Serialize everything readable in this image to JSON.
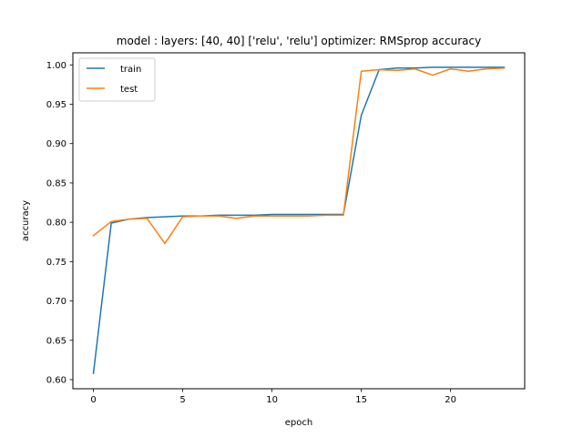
{
  "chart_data": {
    "type": "line",
    "title": "model : layers: [40, 40] ['relu', 'relu'] optimizer: RMSprop accuracy",
    "xlabel": "epoch",
    "ylabel": "accuracy",
    "xlim": [
      -1.15,
      24.15
    ],
    "ylim": [
      0.5884,
      1.0154
    ],
    "xticks": [
      0,
      5,
      10,
      15,
      20
    ],
    "xtick_labels": [
      "0",
      "5",
      "10",
      "15",
      "20"
    ],
    "yticks": [
      0.6,
      0.65,
      0.7,
      0.75,
      0.8,
      0.85,
      0.9,
      0.95,
      1.0
    ],
    "ytick_labels": [
      "0.60",
      "0.65",
      "0.70",
      "0.75",
      "0.80",
      "0.85",
      "0.90",
      "0.95",
      "1.00"
    ],
    "grid": false,
    "legend_position": "upper-left",
    "x": [
      0,
      1,
      2,
      3,
      4,
      5,
      6,
      7,
      8,
      9,
      10,
      11,
      12,
      13,
      14,
      15,
      16,
      17,
      18,
      19,
      20,
      21,
      22,
      23
    ],
    "series": [
      {
        "name": "train",
        "color": "#1f77b4",
        "values": [
          0.608,
          0.799,
          0.804,
          0.806,
          0.807,
          0.808,
          0.808,
          0.809,
          0.809,
          0.809,
          0.81,
          0.81,
          0.81,
          0.81,
          0.81,
          0.936,
          0.994,
          0.996,
          0.996,
          0.997,
          0.997,
          0.997,
          0.997,
          0.997
        ]
      },
      {
        "name": "test",
        "color": "#ff7f0e",
        "values": [
          0.783,
          0.801,
          0.804,
          0.805,
          0.773,
          0.807,
          0.808,
          0.808,
          0.805,
          0.808,
          0.808,
          0.808,
          0.808,
          0.809,
          0.809,
          0.992,
          0.994,
          0.993,
          0.995,
          0.987,
          0.995,
          0.992,
          0.995,
          0.996
        ]
      }
    ]
  }
}
